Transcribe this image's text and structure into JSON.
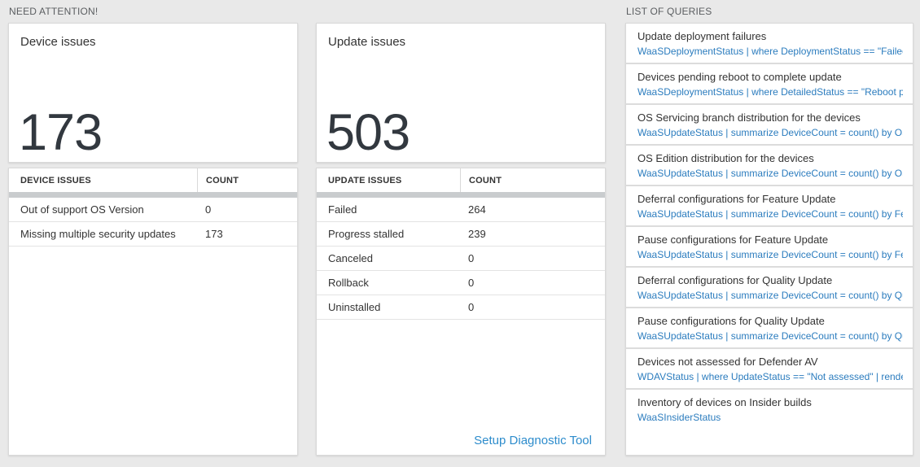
{
  "colors": {
    "background": "#e9e9e9",
    "panel_border": "#d9d9d9",
    "number_text": "#32383f",
    "query_blue": "#2b7cbe",
    "link_blue": "#2d8ccc",
    "grid_bar_gray": "#c9ccce"
  },
  "need_attention": {
    "header": "NEED ATTENTION!",
    "cards": [
      {
        "title": "Device issues",
        "value": "173",
        "table": {
          "columns": [
            "DEVICE ISSUES",
            "COUNT"
          ],
          "rows": [
            [
              "Out of support OS Version",
              "0"
            ],
            [
              "Missing multiple security updates",
              "173"
            ]
          ]
        }
      },
      {
        "title": "Update issues",
        "value": "503",
        "table": {
          "columns": [
            "UPDATE ISSUES",
            "COUNT"
          ],
          "rows": [
            [
              "Failed",
              "264"
            ],
            [
              "Progress stalled",
              "239"
            ],
            [
              "Canceled",
              "0"
            ],
            [
              "Rollback",
              "0"
            ],
            [
              "Uninstalled",
              "0"
            ]
          ]
        },
        "footer_link": "Setup Diagnostic Tool"
      }
    ]
  },
  "queries": {
    "header": "LIST OF QUERIES",
    "items": [
      {
        "title": "Update deployment failures",
        "query": "WaaSDeploymentStatus | where DeploymentStatus == \"Failed\" |..."
      },
      {
        "title": "Devices pending reboot to complete update",
        "query": "WaaSDeploymentStatus | where DetailedStatus == \"Reboot pend..."
      },
      {
        "title": "OS Servicing branch distribution for the devices",
        "query": "WaaSUpdateStatus | summarize DeviceCount = count() by OSSer..."
      },
      {
        "title": "OS Edition distribution for the devices",
        "query": "WaaSUpdateStatus | summarize DeviceCount = count() by OSEdit..."
      },
      {
        "title": "Deferral configurations for Feature Update",
        "query": "WaaSUpdateStatus | summarize DeviceCount = count() by Featur..."
      },
      {
        "title": "Pause configurations for Feature Update",
        "query": "WaaSUpdateStatus | summarize DeviceCount = count() by Featur..."
      },
      {
        "title": "Deferral configurations for Quality Update",
        "query": "WaaSUpdateStatus | summarize DeviceCount = count() by Qualit..."
      },
      {
        "title": "Pause configurations for Quality Update",
        "query": "WaaSUpdateStatus | summarize DeviceCount = count() by Qualit..."
      },
      {
        "title": "Devices not assessed for Defender AV",
        "query": "WDAVStatus | where UpdateStatus == \"Not assessed\" | render ta..."
      },
      {
        "title": "Inventory of devices on Insider builds",
        "query": "WaaSInsiderStatus"
      }
    ]
  }
}
